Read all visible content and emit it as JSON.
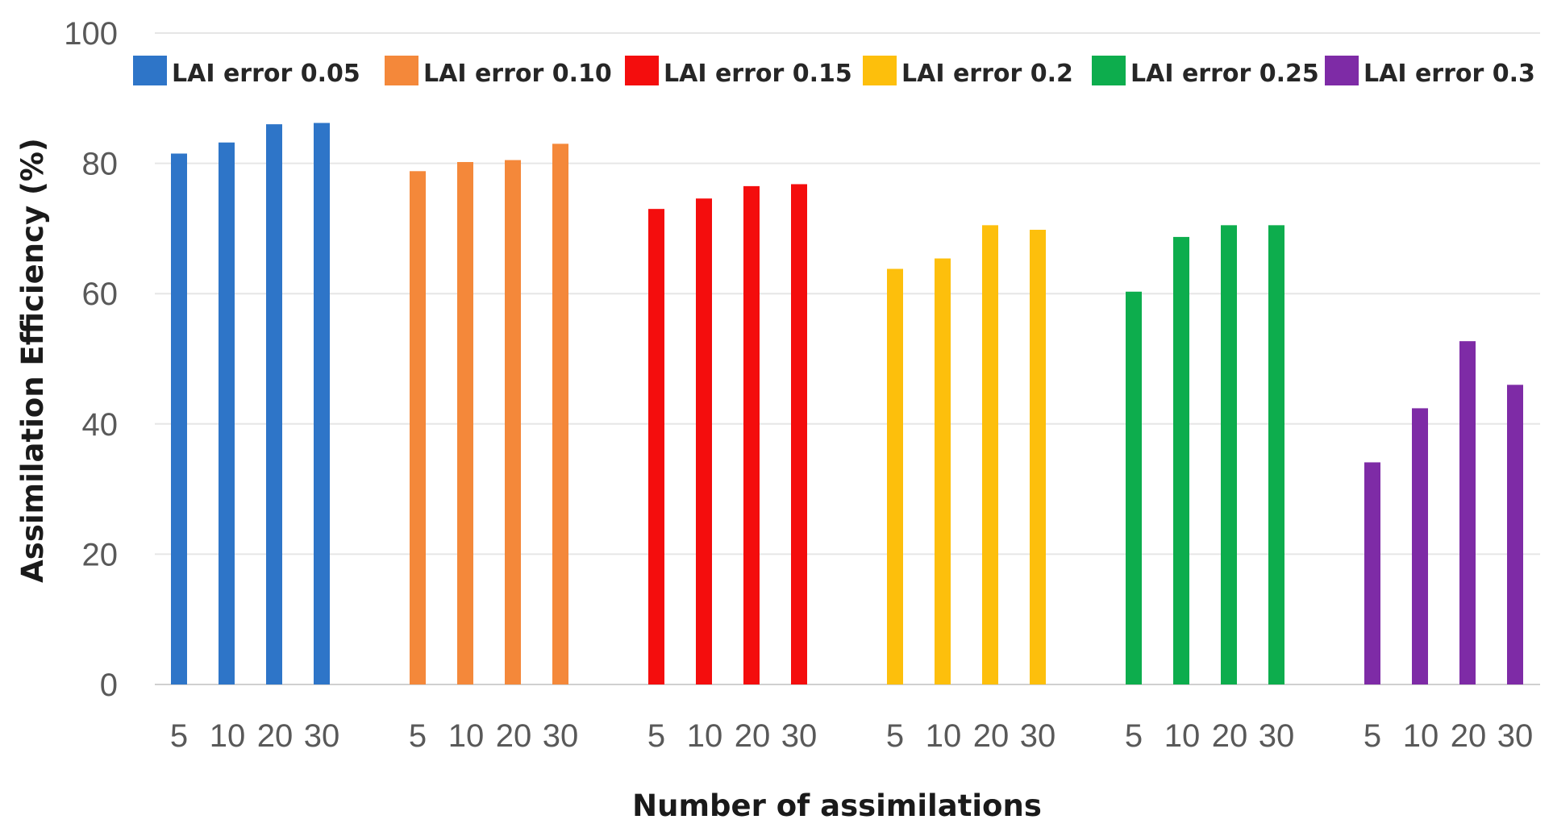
{
  "chart_data": {
    "type": "bar",
    "title": "",
    "xlabel": "Number of assimilations",
    "ylabel": "Assimilation Efficiency (%)",
    "ylim": [
      0,
      100
    ],
    "yticks": [
      "0",
      "20",
      "40",
      "60",
      "80",
      "100"
    ],
    "grid": true,
    "legend_position": "top",
    "categories": [
      "5",
      "10",
      "20",
      "30"
    ],
    "series": [
      {
        "name": "LAI error 0.05",
        "color": "#2E75C8",
        "values": [
          81.5,
          83.2,
          86,
          86.2
        ]
      },
      {
        "name": "LAI error 0.10",
        "color": "#F4883A",
        "values": [
          78.8,
          80.2,
          80.5,
          83
        ]
      },
      {
        "name": "LAI error 0.15",
        "color": "#F40D0D",
        "values": [
          73,
          74.6,
          76.5,
          76.8
        ]
      },
      {
        "name": "LAI error 0.2",
        "color": "#FDBF0C",
        "values": [
          63.8,
          65.4,
          70.5,
          69.8
        ]
      },
      {
        "name": "LAI error 0.25",
        "color": "#0DAD4D",
        "values": [
          60.3,
          68.7,
          70.5,
          70.5
        ]
      },
      {
        "name": "LAI error 0.3",
        "color": "#7E2BA6",
        "values": [
          34.1,
          42.4,
          52.7,
          46
        ]
      }
    ]
  }
}
